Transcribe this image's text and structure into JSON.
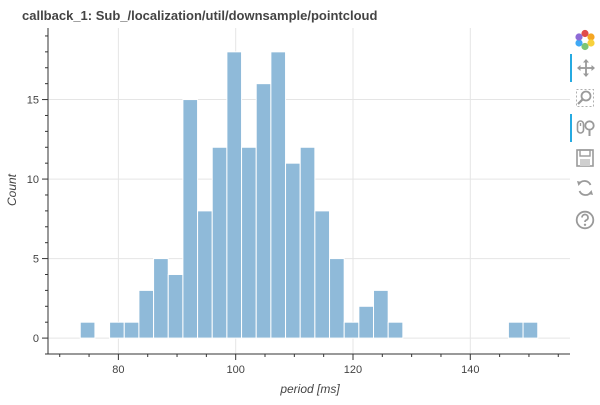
{
  "chart_data": {
    "type": "bar",
    "title": "callback_1: Sub_/localization/util/downsample/pointcloud",
    "xlabel": "period [ms]",
    "ylabel": "Count",
    "xlim": [
      68,
      157
    ],
    "ylim": [
      -1,
      19.5
    ],
    "x_ticks": [
      80,
      100,
      120,
      140
    ],
    "y_ticks": [
      0,
      5,
      10,
      15
    ],
    "grid": true,
    "bar_color": "#8fbad9",
    "bar_edge": "#ffffff",
    "bins": [
      {
        "start": 73.5,
        "end": 76.0,
        "count": 1
      },
      {
        "start": 76.0,
        "end": 78.5,
        "count": 0
      },
      {
        "start": 78.5,
        "end": 81.0,
        "count": 1
      },
      {
        "start": 81.0,
        "end": 83.5,
        "count": 1
      },
      {
        "start": 83.5,
        "end": 86.0,
        "count": 3
      },
      {
        "start": 86.0,
        "end": 88.5,
        "count": 5
      },
      {
        "start": 88.5,
        "end": 91.0,
        "count": 4
      },
      {
        "start": 91.0,
        "end": 93.5,
        "count": 15
      },
      {
        "start": 93.5,
        "end": 96.0,
        "count": 8
      },
      {
        "start": 96.0,
        "end": 98.5,
        "count": 12
      },
      {
        "start": 98.5,
        "end": 101.0,
        "count": 18
      },
      {
        "start": 101.0,
        "end": 103.5,
        "count": 12
      },
      {
        "start": 103.5,
        "end": 106.0,
        "count": 16
      },
      {
        "start": 106.0,
        "end": 108.5,
        "count": 18
      },
      {
        "start": 108.5,
        "end": 111.0,
        "count": 11
      },
      {
        "start": 111.0,
        "end": 113.5,
        "count": 12
      },
      {
        "start": 113.5,
        "end": 116.0,
        "count": 8
      },
      {
        "start": 116.0,
        "end": 118.5,
        "count": 5
      },
      {
        "start": 118.5,
        "end": 121.0,
        "count": 1
      },
      {
        "start": 121.0,
        "end": 123.5,
        "count": 2
      },
      {
        "start": 123.5,
        "end": 126.0,
        "count": 3
      },
      {
        "start": 126.0,
        "end": 128.5,
        "count": 1
      },
      {
        "start": 146.5,
        "end": 149.0,
        "count": 1
      },
      {
        "start": 149.0,
        "end": 151.5,
        "count": 1
      }
    ]
  },
  "toolbar": {
    "tools": [
      {
        "name": "bokeh-logo-icon",
        "active": false
      },
      {
        "name": "pan-icon",
        "active": true
      },
      {
        "name": "box-zoom-icon",
        "active": false
      },
      {
        "name": "wheel-zoom-icon",
        "active": true
      },
      {
        "name": "save-icon",
        "active": false
      },
      {
        "name": "reset-icon",
        "active": false
      },
      {
        "name": "help-icon",
        "active": false
      }
    ]
  }
}
